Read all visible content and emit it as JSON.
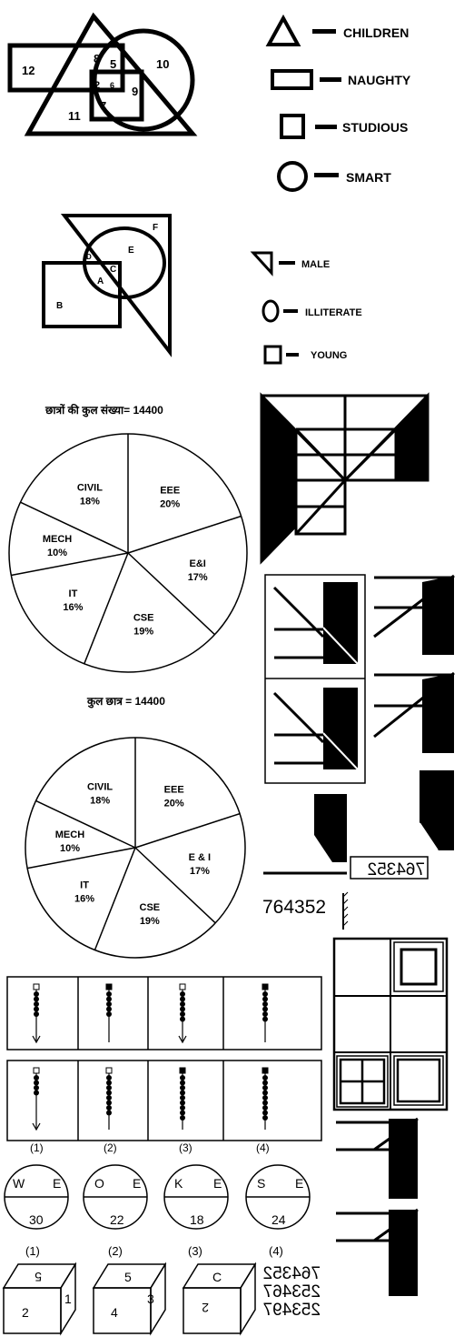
{
  "venn1": {
    "regions": [
      "12",
      "8",
      "5",
      "10",
      "2",
      "6",
      "9",
      "11",
      "7"
    ],
    "legend": [
      "CHILDREN",
      "NAUGHTY",
      "STUDIOUS",
      "SMART"
    ]
  },
  "venn2": {
    "regions": [
      "F",
      "E",
      "D",
      "C",
      "A",
      "B"
    ],
    "legend": [
      "MALE",
      "ILLITERATE",
      "YOUNG"
    ]
  },
  "pie1": {
    "title": "छात्रों की कुल संख्या= 14400",
    "slices": [
      {
        "label": "EEE",
        "pct": "20%",
        "value": 20
      },
      {
        "label": "E&I",
        "pct": "17%",
        "value": 17
      },
      {
        "label": "CSE",
        "pct": "19%",
        "value": 19
      },
      {
        "label": "IT",
        "pct": "16%",
        "value": 16
      },
      {
        "label": "MECH",
        "pct": "10%",
        "value": 10
      },
      {
        "label": "CIVIL",
        "pct": "18%",
        "value": 18
      }
    ]
  },
  "pie2": {
    "title": "कुल छात्र = 14400",
    "slices": [
      {
        "label": "EEE",
        "pct": "20%",
        "value": 20
      },
      {
        "label": "E & I",
        "pct": "17%",
        "value": 17
      },
      {
        "label": "CSE",
        "pct": "19%",
        "value": 19
      },
      {
        "label": "IT",
        "pct": "16%",
        "value": 16
      },
      {
        "label": "MECH",
        "pct": "10%",
        "value": 10
      },
      {
        "label": "CIVIL",
        "pct": "18%",
        "value": 18
      }
    ]
  },
  "numbers": {
    "mirrored_box": "764352",
    "plain": "764352",
    "stack": [
      "764352",
      "253467",
      "253497"
    ]
  },
  "beads": {
    "options": [
      "(1)",
      "(2)",
      "(3)",
      "(4)"
    ]
  },
  "circles": {
    "items": [
      {
        "left": "W",
        "right": "E",
        "bottom": "30"
      },
      {
        "left": "O",
        "right": "E",
        "bottom": "22"
      },
      {
        "left": "K",
        "right": "E",
        "bottom": "18"
      },
      {
        "left": "S",
        "right": "E",
        "bottom": "24"
      }
    ],
    "options": [
      "(1)",
      "(2)",
      "(3)",
      "(4)"
    ]
  },
  "cubes": {
    "items": [
      {
        "top": "5",
        "front": "2",
        "side": "1"
      },
      {
        "top": "5",
        "front": "4",
        "side": "3"
      },
      {
        "top": "C",
        "front": "2",
        "side": ""
      }
    ]
  }
}
